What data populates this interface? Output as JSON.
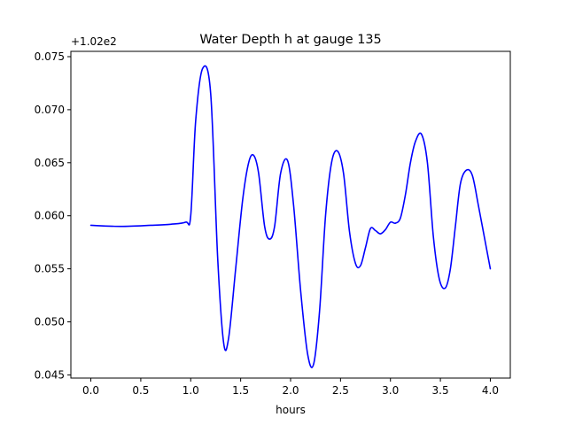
{
  "chart_data": {
    "type": "line",
    "title": "Water Depth h at gauge 135",
    "xlabel": "hours",
    "ylabel": "",
    "offset_text": "+1.02e2",
    "xlim": [
      -0.2,
      4.2
    ],
    "ylim": [
      0.0447,
      0.0755
    ],
    "xticks": [
      0.0,
      0.5,
      1.0,
      1.5,
      2.0,
      2.5,
      3.0,
      3.5,
      4.0
    ],
    "xtick_labels": [
      "0.0",
      "0.5",
      "1.0",
      "1.5",
      "2.0",
      "2.5",
      "3.0",
      "3.5",
      "4.0"
    ],
    "yticks": [
      0.045,
      0.05,
      0.055,
      0.06,
      0.065,
      0.07,
      0.075
    ],
    "ytick_labels": [
      "0.045",
      "0.050",
      "0.055",
      "0.060",
      "0.065",
      "0.070",
      "0.075"
    ],
    "grid": false,
    "series": [
      {
        "color": "#0000ff",
        "x": [
          0.0,
          0.3,
          0.6,
          0.8,
          0.95,
          1.0,
          1.05,
          1.12,
          1.2,
          1.27,
          1.33,
          1.38,
          1.45,
          1.52,
          1.58,
          1.63,
          1.68,
          1.74,
          1.79,
          1.84,
          1.9,
          1.97,
          2.03,
          2.1,
          2.17,
          2.23,
          2.29,
          2.35,
          2.41,
          2.47,
          2.53,
          2.59,
          2.65,
          2.7,
          2.75,
          2.8,
          2.85,
          2.9,
          2.95,
          3.0,
          3.05,
          3.1,
          3.15,
          3.2,
          3.25,
          3.31,
          3.37,
          3.43,
          3.49,
          3.55,
          3.6,
          3.65,
          3.7,
          3.76,
          3.82,
          3.88,
          3.94,
          4.0
        ],
        "y": [
          0.0591,
          0.059,
          0.0591,
          0.0592,
          0.0594,
          0.06,
          0.069,
          0.0739,
          0.0715,
          0.056,
          0.048,
          0.0485,
          0.055,
          0.0615,
          0.065,
          0.0657,
          0.064,
          0.059,
          0.0578,
          0.059,
          0.064,
          0.0652,
          0.061,
          0.053,
          0.047,
          0.046,
          0.051,
          0.06,
          0.065,
          0.0661,
          0.064,
          0.0585,
          0.0555,
          0.0553,
          0.057,
          0.0588,
          0.0586,
          0.0583,
          0.0587,
          0.0594,
          0.0593,
          0.0598,
          0.062,
          0.065,
          0.067,
          0.0677,
          0.065,
          0.058,
          0.054,
          0.0532,
          0.055,
          0.059,
          0.063,
          0.0643,
          0.0638,
          0.061,
          0.058,
          0.055
        ]
      }
    ]
  }
}
